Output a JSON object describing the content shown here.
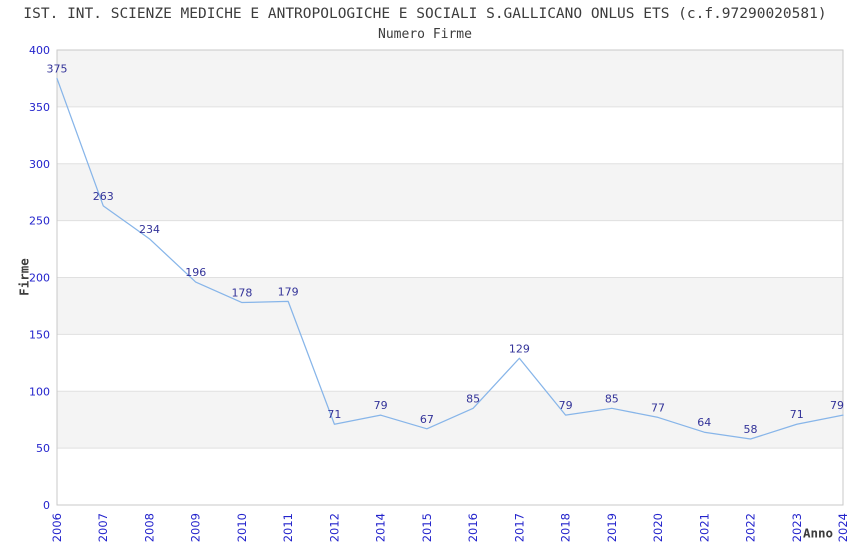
{
  "page": {
    "title": "IST. INT. SCIENZE MEDICHE E ANTROPOLOGICHE E SOCIALI S.GALLICANO ONLUS ETS (c.f.97290020581)"
  },
  "chart_data": {
    "type": "line",
    "title": "Numero Firme",
    "xlabel": "Anno",
    "ylabel": "Firme",
    "categories": [
      "2006",
      "2007",
      "2008",
      "2009",
      "2010",
      "2011",
      "2012",
      "2014",
      "2015",
      "2016",
      "2017",
      "2018",
      "2019",
      "2020",
      "2021",
      "2022",
      "2023",
      "2024"
    ],
    "values": [
      375,
      263,
      234,
      196,
      178,
      179,
      71,
      79,
      67,
      85,
      129,
      79,
      85,
      77,
      64,
      58,
      71,
      79
    ],
    "ylim": [
      0,
      400
    ],
    "ytick_step": 50,
    "grid": "horizontal-bands-alternating",
    "legend": "none",
    "x_tick_rotation": -90,
    "notes": "year 2013 absent from x axis",
    "colors": {
      "line": "#87b5e9",
      "value_labels": "#333399",
      "tick_labels": "#2323cc",
      "band_fill": "#f4f4f4",
      "band_alt_fill": "#ffffff",
      "gridline": "#e0e0e0",
      "plot_border": "#c9c9c9",
      "title_text": "#3c3c3c"
    }
  }
}
